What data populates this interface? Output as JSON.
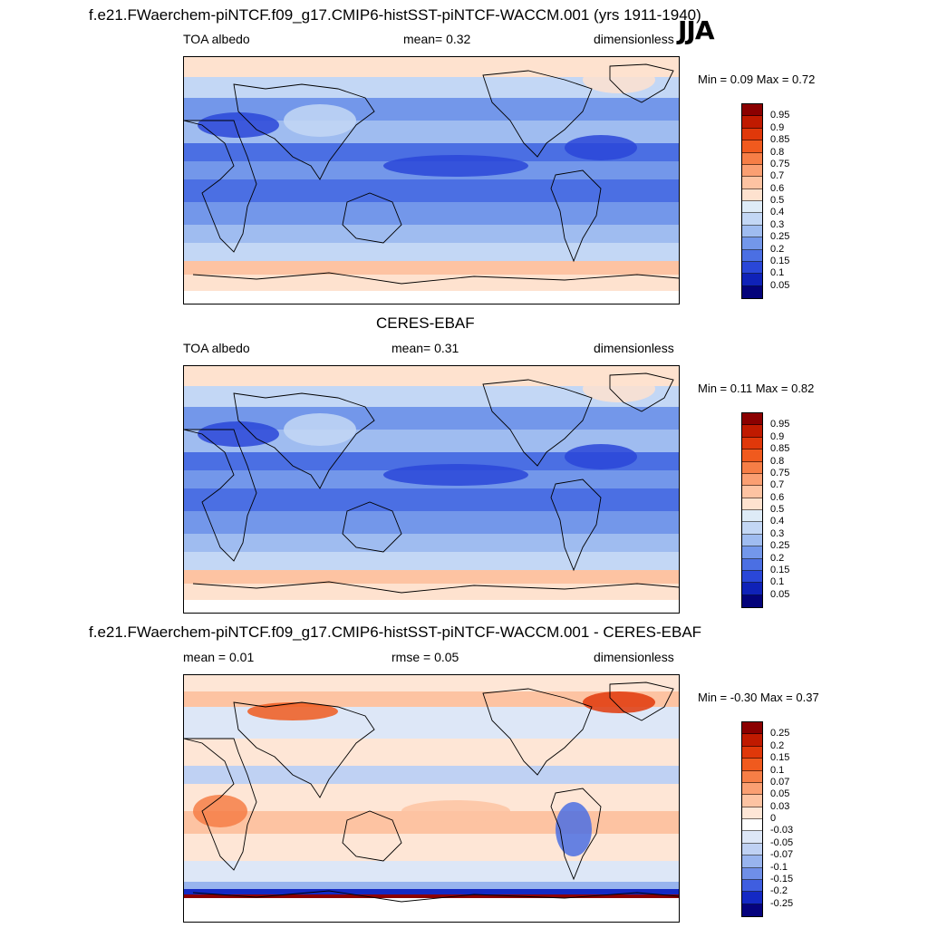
{
  "season": "JJA",
  "panel1": {
    "title": "f.e21.FWaerchem-piNTCF.f09_g17.CMIP6-histSST-piNTCF-WACCM.001 (yrs 1911-1940)",
    "variable": "TOA albedo",
    "stat": "mean=   0.32",
    "units": "dimensionless",
    "minmax": "Min =   0.09  Max =    0.72"
  },
  "panel2": {
    "title": "CERES-EBAF",
    "variable": "TOA albedo",
    "stat": "mean=   0.31",
    "units": "dimensionless",
    "minmax": "Min =   0.11  Max =    0.82"
  },
  "panel3": {
    "title": "f.e21.FWaerchem-piNTCF.f09_g17.CMIP6-histSST-piNTCF-WACCM.001 - CERES-EBAF",
    "variable": "mean =   0.01",
    "stat": "rmse =   0.05",
    "units": "dimensionless",
    "minmax": "Min =  -0.30  Max =    0.37"
  },
  "chart_data": [
    {
      "type": "heatmap",
      "title": "f.e21.FWaerchem-piNTCF.f09_g17.CMIP6-histSST-piNTCF-WACCM.001 (yrs 1911-1940)",
      "variable": "TOA albedo",
      "mean": 0.32,
      "min": 0.09,
      "max": 0.72,
      "units": "dimensionless",
      "colorbar_levels": [
        0.95,
        0.9,
        0.85,
        0.8,
        0.75,
        0.7,
        0.6,
        0.5,
        0.4,
        0.3,
        0.25,
        0.2,
        0.15,
        0.1,
        0.05
      ],
      "colorbar_colors": [
        "#8b0000",
        "#c01a00",
        "#e0380a",
        "#f05a1e",
        "#f67e46",
        "#fa9f72",
        "#fdc3a2",
        "#fee2cf",
        "#deebf7",
        "#c3d7f5",
        "#9fbcf0",
        "#7397ea",
        "#4b6fe3",
        "#2a47d8",
        "#0f22b8",
        "#04037a"
      ]
    },
    {
      "type": "heatmap",
      "title": "CERES-EBAF",
      "variable": "TOA albedo",
      "mean": 0.31,
      "min": 0.11,
      "max": 0.82,
      "units": "dimensionless",
      "colorbar_levels": [
        0.95,
        0.9,
        0.85,
        0.8,
        0.75,
        0.7,
        0.6,
        0.5,
        0.4,
        0.3,
        0.25,
        0.2,
        0.15,
        0.1,
        0.05
      ],
      "colorbar_colors": [
        "#8b0000",
        "#c01a00",
        "#e0380a",
        "#f05a1e",
        "#f67e46",
        "#fa9f72",
        "#fdc3a2",
        "#fee2cf",
        "#deebf7",
        "#c3d7f5",
        "#9fbcf0",
        "#7397ea",
        "#4b6fe3",
        "#2a47d8",
        "#0f22b8",
        "#04037a"
      ]
    },
    {
      "type": "heatmap",
      "title": "f.e21.FWaerchem-piNTCF.f09_g17.CMIP6-histSST-piNTCF-WACCM.001 - CERES-EBAF",
      "mean": 0.01,
      "rmse": 0.05,
      "min": -0.3,
      "max": 0.37,
      "units": "dimensionless",
      "colorbar_levels": [
        0.25,
        0.2,
        0.15,
        0.1,
        0.07,
        0.05,
        0.03,
        0,
        -0.03,
        -0.05,
        -0.07,
        -0.1,
        -0.15,
        -0.2,
        -0.25
      ],
      "colorbar_colors": [
        "#8b0000",
        "#c01a00",
        "#e0380a",
        "#f05a1e",
        "#f67e46",
        "#fa9f72",
        "#fdc3a2",
        "#fee6d6",
        "#ffffff",
        "#dde7f7",
        "#bfd1f3",
        "#98b4ee",
        "#6f8fe8",
        "#3f5ee0",
        "#1429c4",
        "#06037e"
      ]
    }
  ]
}
